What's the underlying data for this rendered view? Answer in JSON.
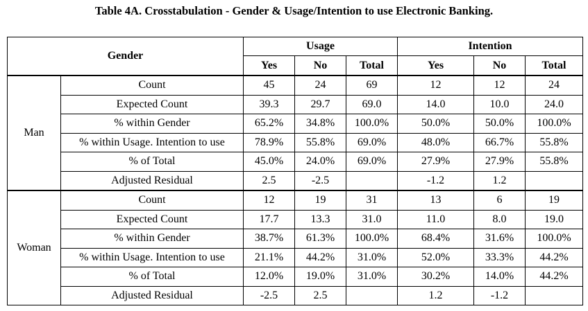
{
  "caption": "Table 4A. Crosstabulation - Gender & Usage/Intention to use Electronic Banking.",
  "header": {
    "gender": "Gender",
    "usage": "Usage",
    "intention": "Intention",
    "usage_cols": [
      "Yes",
      "No",
      "Total"
    ],
    "intention_cols": [
      "Yes",
      "No",
      "Total"
    ]
  },
  "groups": [
    {
      "gender": "Man",
      "rows": [
        {
          "label": "Count",
          "cells": [
            "45",
            "24",
            "69",
            "12",
            "12",
            "24"
          ]
        },
        {
          "label": "Expected Count",
          "cells": [
            "39.3",
            "29.7",
            "69.0",
            "14.0",
            "10.0",
            "24.0"
          ]
        },
        {
          "label": "% within Gender",
          "cells": [
            "65.2%",
            "34.8%",
            "100.0%",
            "50.0%",
            "50.0%",
            "100.0%"
          ]
        },
        {
          "label": "% within Usage. Intention to use",
          "cells": [
            "78.9%",
            "55.8%",
            "69.0%",
            "48.0%",
            "66.7%",
            "55.8%"
          ]
        },
        {
          "label": "% of Total",
          "cells": [
            "45.0%",
            "24.0%",
            "69.0%",
            "27.9%",
            "27.9%",
            "55.8%"
          ]
        },
        {
          "label": "Adjusted Residual",
          "cells": [
            "2.5",
            "-2.5",
            "",
            "-1.2",
            "1.2",
            ""
          ]
        }
      ]
    },
    {
      "gender": "Woman",
      "rows": [
        {
          "label": "Count",
          "cells": [
            "12",
            "19",
            "31",
            "13",
            "6",
            "19"
          ]
        },
        {
          "label": "Expected Count",
          "cells": [
            "17.7",
            "13.3",
            "31.0",
            "11.0",
            "8.0",
            "19.0"
          ]
        },
        {
          "label": "% within Gender",
          "cells": [
            "38.7%",
            "61.3%",
            "100.0%",
            "68.4%",
            "31.6%",
            "100.0%"
          ]
        },
        {
          "label": "% within Usage. Intention to use",
          "cells": [
            "21.1%",
            "44.2%",
            "31.0%",
            "52.0%",
            "33.3%",
            "44.2%"
          ]
        },
        {
          "label": "% of Total",
          "cells": [
            "12.0%",
            "19.0%",
            "31.0%",
            "30.2%",
            "14.0%",
            "44.2%"
          ]
        },
        {
          "label": "Adjusted Residual",
          "cells": [
            "-2.5",
            "2.5",
            "",
            "1.2",
            "-1.2",
            ""
          ]
        }
      ]
    }
  ]
}
